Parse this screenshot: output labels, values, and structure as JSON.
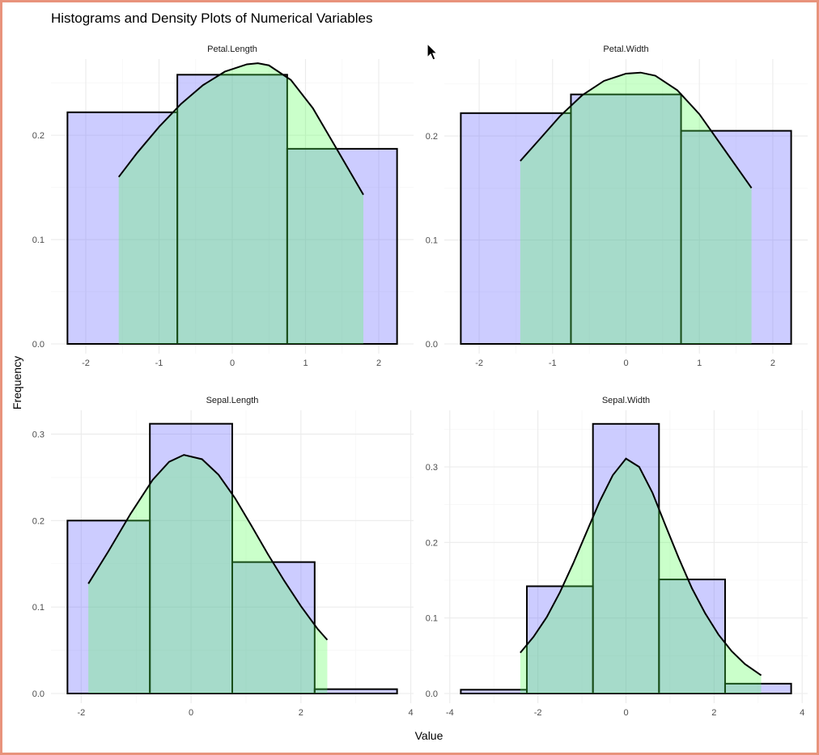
{
  "chart_data": {
    "type": "bar",
    "title": "Histograms and Density Plots of Numerical Variables",
    "xlabel": "Value",
    "ylabel": "Frequency",
    "grid": true,
    "bar_fill": "#6e6eff",
    "density_fill": "#50ff50",
    "facets": [
      {
        "name": "Petal.Length",
        "xlim": [
          -2.25,
          2.25
        ],
        "ylim": [
          0,
          0.26
        ],
        "xticks": [
          -2,
          -1,
          0,
          1,
          2
        ],
        "yticks": [
          0.0,
          0.1,
          0.2
        ],
        "tick_labels_y": [
          "0.0",
          "0.1",
          "0.2"
        ],
        "bins": [
          {
            "x0": -2.25,
            "x1": -0.75,
            "y": 0.222
          },
          {
            "x0": -0.75,
            "x1": 0.75,
            "y": 0.258
          },
          {
            "x0": 0.75,
            "x1": 2.25,
            "y": 0.187
          }
        ],
        "density": {
          "x": [
            -1.55,
            -1.3,
            -1.0,
            -0.7,
            -0.4,
            -0.1,
            0.2,
            0.35,
            0.5,
            0.8,
            1.1,
            1.4,
            1.79
          ],
          "y": [
            0.16,
            0.183,
            0.208,
            0.23,
            0.248,
            0.261,
            0.268,
            0.269,
            0.267,
            0.253,
            0.226,
            0.19,
            0.143
          ]
        }
      },
      {
        "name": "Petal.Width",
        "xlim": [
          -2.25,
          2.25
        ],
        "ylim": [
          0,
          0.26
        ],
        "xticks": [
          -2,
          -1,
          0,
          1,
          2
        ],
        "yticks": [
          0.0,
          0.1,
          0.2
        ],
        "tick_labels_y": [
          "0.0",
          "0.1",
          "0.2"
        ],
        "bins": [
          {
            "x0": -2.25,
            "x1": -0.75,
            "y": 0.222
          },
          {
            "x0": -0.75,
            "x1": 0.75,
            "y": 0.24
          },
          {
            "x0": 0.75,
            "x1": 2.25,
            "y": 0.205
          }
        ],
        "density": {
          "x": [
            -1.44,
            -1.2,
            -0.9,
            -0.6,
            -0.3,
            0.0,
            0.2,
            0.4,
            0.7,
            1.0,
            1.3,
            1.71
          ],
          "y": [
            0.176,
            0.195,
            0.219,
            0.239,
            0.253,
            0.26,
            0.261,
            0.258,
            0.244,
            0.221,
            0.191,
            0.15
          ]
        }
      },
      {
        "name": "Sepal.Length",
        "xlim": [
          -2.25,
          3.75
        ],
        "ylim": [
          0,
          0.312
        ],
        "xticks": [
          -2,
          0,
          2,
          4
        ],
        "yticks": [
          0.0,
          0.1,
          0.2,
          0.3
        ],
        "tick_labels_y": [
          "0.0",
          "0.1",
          "0.2",
          "0.3"
        ],
        "bins": [
          {
            "x0": -2.25,
            "x1": -0.75,
            "y": 0.2
          },
          {
            "x0": -0.75,
            "x1": 0.75,
            "y": 0.312
          },
          {
            "x0": 0.75,
            "x1": 2.25,
            "y": 0.152
          },
          {
            "x0": 2.25,
            "x1": 3.75,
            "y": 0.005
          }
        ],
        "density": {
          "x": [
            -1.87,
            -1.5,
            -1.1,
            -0.7,
            -0.4,
            -0.13,
            0.2,
            0.5,
            0.8,
            1.1,
            1.4,
            1.7,
            2.0,
            2.3,
            2.48
          ],
          "y": [
            0.127,
            0.165,
            0.208,
            0.247,
            0.268,
            0.276,
            0.271,
            0.253,
            0.226,
            0.194,
            0.161,
            0.13,
            0.101,
            0.075,
            0.062
          ]
        }
      },
      {
        "name": "Sepal.Width",
        "xlim": [
          -3.75,
          3.75
        ],
        "ylim": [
          0,
          0.357
        ],
        "xticks": [
          -4,
          -2,
          0,
          2,
          4
        ],
        "yticks": [
          0.0,
          0.1,
          0.2,
          0.3
        ],
        "tick_labels_y": [
          "0.0",
          "0.1",
          "0.2",
          "0.3"
        ],
        "bins": [
          {
            "x0": -3.75,
            "x1": -2.25,
            "y": 0.005
          },
          {
            "x0": -2.25,
            "x1": -0.75,
            "y": 0.142
          },
          {
            "x0": -0.75,
            "x1": 0.75,
            "y": 0.357
          },
          {
            "x0": 0.75,
            "x1": 2.25,
            "y": 0.151
          },
          {
            "x0": 2.25,
            "x1": 3.75,
            "y": 0.013
          }
        ],
        "density": {
          "x": [
            -2.4,
            -2.1,
            -1.8,
            -1.5,
            -1.2,
            -0.9,
            -0.6,
            -0.3,
            0.0,
            0.3,
            0.6,
            0.9,
            1.2,
            1.5,
            1.8,
            2.1,
            2.4,
            2.7,
            3.07
          ],
          "y": [
            0.054,
            0.075,
            0.101,
            0.134,
            0.172,
            0.213,
            0.254,
            0.289,
            0.311,
            0.3,
            0.266,
            0.222,
            0.179,
            0.139,
            0.106,
            0.078,
            0.056,
            0.039,
            0.024
          ]
        }
      }
    ]
  }
}
